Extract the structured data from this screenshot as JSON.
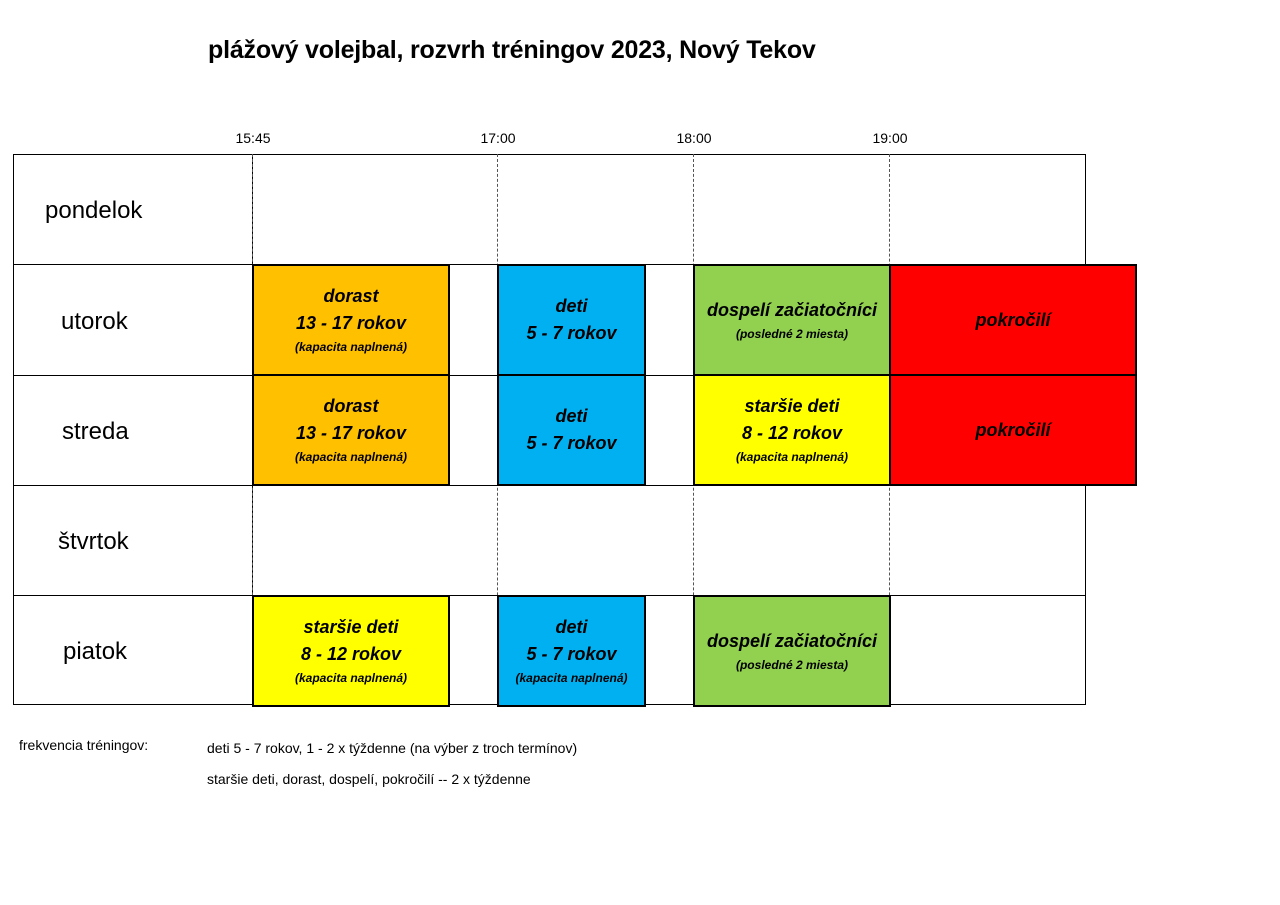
{
  "title": "plážový volejbal, rozvrh tréningov 2023, Nový Tekov",
  "times": [
    "15:45",
    "17:00",
    "18:00",
    "19:00"
  ],
  "days": [
    "pondelok",
    "utorok",
    "streda",
    "štvrtok",
    "piatok"
  ],
  "blocks": {
    "utorok": {
      "dorast": {
        "l1": "dorast",
        "l2": "13 - 17 rokov",
        "note": "(kapacita naplnená)"
      },
      "deti": {
        "l1": "deti",
        "l2": "5 - 7 rokov"
      },
      "dospeli": {
        "l1": "dospelí začiatočníci",
        "note": "(posledné 2 miesta)"
      },
      "pokrocili": {
        "l1": "pokročilí"
      }
    },
    "streda": {
      "dorast": {
        "l1": "dorast",
        "l2": "13 - 17 rokov",
        "note": "(kapacita naplnená)"
      },
      "deti": {
        "l1": "deti",
        "l2": "5 - 7 rokov"
      },
      "starsie": {
        "l1": "staršie deti",
        "l2": "8 - 12 rokov",
        "note": "(kapacita naplnená)"
      },
      "pokrocili": {
        "l1": "pokročilí"
      }
    },
    "piatok": {
      "starsie": {
        "l1": "staršie deti",
        "l2": "8 - 12 rokov",
        "note": "(kapacita naplnená)"
      },
      "deti": {
        "l1": "deti",
        "l2": "5 - 7 rokov",
        "note": "(kapacita naplnená)"
      },
      "dospeli": {
        "l1": "dospelí začiatočníci",
        "note": "(posledné 2 miesta)"
      }
    }
  },
  "frequency": {
    "label": "frekvencia tréningov:",
    "line1": "deti 5 - 7 rokov, 1 - 2 x týždenne (na výber z troch termínov)",
    "line2": "staršie deti, dorast, dospelí, pokročilí -- 2 x týždenne"
  },
  "colors": {
    "dorast": "#ffc000",
    "deti": "#00b0f0",
    "dospeli_zaciatocnici": "#92d050",
    "starsie_deti": "#ffff00",
    "pokrocili": "#ff0000"
  }
}
